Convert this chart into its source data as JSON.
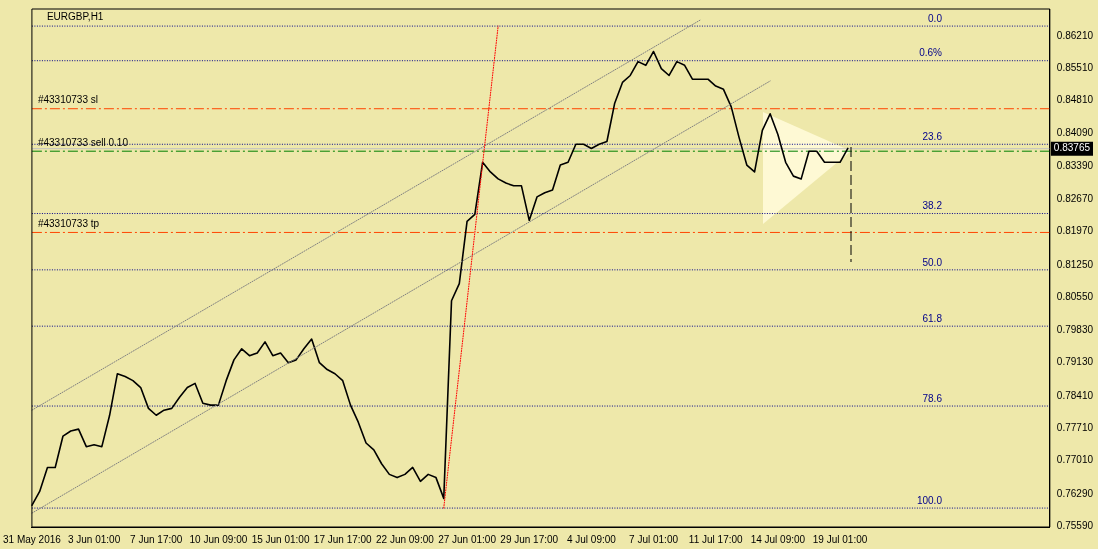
{
  "chart_data": {
    "type": "line",
    "title": "EURGBP,H1",
    "marker": "none",
    "grid": false,
    "legend": false,
    "categories": [
      "31 May 2016",
      null,
      null,
      null,
      null,
      null,
      null,
      null,
      "3 Jun 01:00",
      null,
      null,
      null,
      null,
      null,
      null,
      null,
      "7 Jun 17:00",
      null,
      null,
      null,
      null,
      null,
      null,
      null,
      "10 Jun 09:00",
      null,
      null,
      null,
      null,
      null,
      null,
      null,
      "15 Jun 01:00",
      null,
      null,
      null,
      null,
      null,
      null,
      null,
      "17 Jun 17:00",
      null,
      null,
      null,
      null,
      null,
      null,
      null,
      "22 Jun 09:00",
      null,
      null,
      null,
      null,
      null,
      null,
      null,
      "27 Jun 01:00",
      null,
      null,
      null,
      null,
      null,
      null,
      null,
      "29 Jun 17:00",
      null,
      null,
      null,
      null,
      null,
      null,
      null,
      "4 Jul 09:00",
      null,
      null,
      null,
      null,
      null,
      null,
      null,
      "7 Jul 01:00",
      null,
      null,
      null,
      null,
      null,
      null,
      null,
      "11 Jul 17:00",
      null,
      null,
      null,
      null,
      null,
      null,
      null,
      "14 Jul 09:00",
      null,
      null,
      null,
      null,
      null,
      null,
      null,
      "19 Jul 01:00",
      null,
      null,
      null,
      null,
      null,
      null,
      null,
      null,
      null,
      null,
      null,
      null,
      null,
      null,
      null,
      null,
      null,
      null,
      null,
      null,
      null,
      null,
      null,
      null,
      null,
      null,
      null
    ],
    "ylim": [
      0.7557,
      0.8679
    ],
    "yticks": [
      {
        "value": 0.7559,
        "label": "0.75590"
      },
      {
        "value": 0.7629,
        "label": "0.76290"
      },
      {
        "value": 0.7701,
        "label": "0.77010"
      },
      {
        "value": 0.7771,
        "label": "0.77710"
      },
      {
        "value": 0.7841,
        "label": "0.78410"
      },
      {
        "value": 0.7913,
        "label": "0.79130"
      },
      {
        "value": 0.7983,
        "label": "0.79830"
      },
      {
        "value": 0.8055,
        "label": "0.80550"
      },
      {
        "value": 0.8125,
        "label": "0.81250"
      },
      {
        "value": 0.8197,
        "label": "0.81970"
      },
      {
        "value": 0.8267,
        "label": "0.82670"
      },
      {
        "value": 0.8339,
        "label": "0.83390"
      },
      {
        "value": 0.8409,
        "label": "0.84090"
      },
      {
        "value": 0.8481,
        "label": "0.84810"
      },
      {
        "value": 0.8551,
        "label": "0.85510"
      },
      {
        "value": 0.8621,
        "label": "0.86210"
      }
    ],
    "series": [
      {
        "color": "#000000",
        "line_style": "solid",
        "values": [
          0.7604,
          0.7634,
          0.7686,
          0.7686,
          0.7754,
          0.7765,
          0.7769,
          0.7731,
          0.7735,
          0.7731,
          0.7799,
          0.7889,
          0.7883,
          0.7874,
          0.7859,
          0.7814,
          0.7799,
          0.781,
          0.7814,
          0.7838,
          0.7859,
          0.7868,
          0.7825,
          0.7821,
          0.7821,
          0.7874,
          0.7919,
          0.7943,
          0.7928,
          0.7934,
          0.7958,
          0.7928,
          0.7934,
          0.7913,
          0.7919,
          0.7943,
          0.7964,
          0.7913,
          0.7898,
          0.7889,
          0.7874,
          0.7821,
          0.7784,
          0.7739,
          0.7724,
          0.7694,
          0.7671,
          0.7664,
          0.7671,
          0.7686,
          0.7656,
          0.7671,
          0.7664,
          0.7619,
          0.8047,
          0.8084,
          0.8219,
          0.8234,
          0.8347,
          0.8326,
          0.8311,
          0.8302,
          0.8296,
          0.8296,
          0.8221,
          0.8272,
          0.8281,
          0.8287,
          0.8341,
          0.8347,
          0.8386,
          0.8386,
          0.8377,
          0.8386,
          0.8392,
          0.8475,
          0.852,
          0.8535,
          0.8565,
          0.8557,
          0.8587,
          0.855,
          0.8535,
          0.8565,
          0.8557,
          0.8527,
          0.8527,
          0.8527,
          0.8512,
          0.8505,
          0.8467,
          0.8401,
          0.8341,
          0.8326,
          0.8416,
          0.8452,
          0.8407,
          0.8347,
          0.8317,
          0.8311,
          0.8371,
          0.8371,
          0.8347,
          0.8347,
          0.8347,
          0.8377,
          null,
          null,
          null,
          null,
          null,
          null,
          null,
          null,
          null,
          null,
          null,
          null,
          null,
          null,
          null,
          null,
          null,
          null,
          null,
          null,
          null,
          null,
          null,
          null,
          null,
          null
        ]
      },
      {
        "color": "#808080",
        "line_style": "dotted",
        "values": [
          0.781,
          null,
          null,
          null,
          null,
          null,
          null,
          null,
          null,
          null,
          null,
          null,
          null,
          null,
          null,
          null,
          null,
          null,
          null,
          null,
          null,
          null,
          null,
          null,
          null,
          null,
          null,
          null,
          null,
          null,
          null,
          null,
          null,
          null,
          null,
          null,
          null,
          null,
          null,
          null,
          null,
          null,
          null,
          null,
          null,
          null,
          null,
          null,
          null,
          null,
          null,
          null,
          null,
          null,
          null,
          null,
          null,
          null,
          null,
          null,
          null,
          null,
          null,
          null,
          null,
          null,
          null,
          null,
          null,
          null,
          null,
          null,
          null,
          null,
          null,
          null,
          null,
          null,
          null,
          null,
          null,
          null,
          null,
          null,
          null,
          null,
          0.8655,
          null,
          null,
          null,
          null,
          null,
          null,
          null,
          null,
          null,
          null,
          null,
          null,
          null,
          null,
          null,
          null,
          null,
          null,
          null,
          null,
          null,
          null,
          null,
          null,
          null,
          null,
          null,
          null,
          null,
          null,
          null,
          null,
          null,
          null,
          null,
          null,
          null,
          null,
          null,
          null,
          null,
          null,
          null,
          null,
          null
        ]
      },
      {
        "color": "#808080",
        "line_style": "dotted",
        "values": [
          0.7587,
          null,
          null,
          null,
          null,
          null,
          null,
          null,
          null,
          null,
          null,
          null,
          null,
          null,
          null,
          null,
          null,
          null,
          null,
          null,
          null,
          null,
          null,
          null,
          null,
          null,
          null,
          null,
          null,
          null,
          null,
          null,
          null,
          null,
          null,
          null,
          null,
          null,
          null,
          null,
          null,
          null,
          null,
          null,
          null,
          null,
          null,
          null,
          null,
          null,
          null,
          null,
          null,
          null,
          null,
          null,
          null,
          null,
          null,
          null,
          null,
          null,
          null,
          null,
          null,
          null,
          null,
          null,
          null,
          null,
          null,
          null,
          null,
          null,
          null,
          null,
          null,
          null,
          null,
          null,
          null,
          null,
          null,
          null,
          null,
          null,
          null,
          null,
          null,
          null,
          null,
          null,
          null,
          null,
          null,
          0.8523,
          null,
          null,
          null,
          null,
          null,
          null,
          null,
          null,
          null,
          null,
          null,
          null,
          null,
          null,
          null,
          null,
          null,
          null,
          null,
          null,
          null,
          null,
          null,
          null,
          null,
          null,
          null,
          null,
          null,
          null,
          null,
          null,
          null,
          null,
          null,
          null
        ]
      },
      {
        "color": "#ff0000",
        "line_style": "dotted",
        "values": [
          null,
          null,
          null,
          null,
          null,
          null,
          null,
          null,
          null,
          null,
          null,
          null,
          null,
          null,
          null,
          null,
          null,
          null,
          null,
          null,
          null,
          null,
          null,
          null,
          null,
          null,
          null,
          null,
          null,
          null,
          null,
          null,
          null,
          null,
          null,
          null,
          null,
          null,
          null,
          null,
          null,
          null,
          null,
          null,
          null,
          null,
          null,
          null,
          null,
          null,
          null,
          null,
          null,
          0.7598,
          null,
          null,
          null,
          null,
          null,
          null,
          0.8642,
          null,
          null,
          null,
          null,
          null,
          null,
          null,
          null,
          null,
          null,
          null,
          null,
          null,
          null,
          null,
          null,
          null,
          null,
          null,
          null,
          null,
          null,
          null,
          null,
          null,
          null,
          null,
          null,
          null,
          null,
          null,
          null,
          null,
          null,
          null,
          null,
          null,
          null,
          null,
          null,
          null,
          null,
          null,
          null,
          null,
          null,
          null,
          null,
          null,
          null,
          null,
          null,
          null,
          null,
          null,
          null,
          null,
          null,
          null,
          null,
          null,
          null,
          null,
          null,
          null,
          null,
          null,
          null,
          null,
          null,
          null
        ]
      }
    ],
    "ref_lines": [
      {
        "axis": "y",
        "value": 0.8642,
        "color": "#00008b",
        "line_style": "dotted"
      },
      {
        "axis": "y",
        "value": 0.8567,
        "color": "#00008b",
        "line_style": "dotted"
      },
      {
        "axis": "y",
        "value": 0.8386,
        "color": "#00008b",
        "line_style": "dotted"
      },
      {
        "axis": "y",
        "value": 0.8236,
        "color": "#00008b",
        "line_style": "dotted"
      },
      {
        "axis": "y",
        "value": 0.8114,
        "color": "#00008b",
        "line_style": "dotted"
      },
      {
        "axis": "y",
        "value": 0.7992,
        "color": "#00008b",
        "line_style": "dotted"
      },
      {
        "axis": "y",
        "value": 0.7819,
        "color": "#00008b",
        "line_style": "dotted"
      },
      {
        "axis": "y",
        "value": 0.7598,
        "color": "#00008b",
        "line_style": "dotted"
      },
      {
        "axis": "y",
        "value": 0.8463,
        "label": "#43310733 sl",
        "color": "#ff4500",
        "line_style": "dashed"
      },
      {
        "axis": "y",
        "value": 0.8371,
        "label": "#43310733 sell 0.10",
        "color": "#008000",
        "line_style": "dashed"
      },
      {
        "axis": "y",
        "value": 0.8195,
        "label": "#43310733 tp",
        "color": "#ff4500",
        "line_style": "dashed"
      },
      {
        "axis": "y",
        "value": 0.83765,
        "label": "0.83765",
        "color": "#c0c0c0",
        "line_style": "solid"
      }
    ],
    "annotations": [
      {
        "text": "0.0",
        "y": 0.8642
      },
      {
        "text": "0.6%",
        "y": 0.8567
      },
      {
        "text": "23.6",
        "y": 0.8386
      },
      {
        "text": "38.2",
        "y": 0.8236
      },
      {
        "text": "50.0",
        "y": 0.8114
      },
      {
        "text": "61.8",
        "y": 0.7992
      },
      {
        "text": "78.6",
        "y": 0.7819
      },
      {
        "text": "100.0",
        "y": 0.7598
      }
    ]
  }
}
